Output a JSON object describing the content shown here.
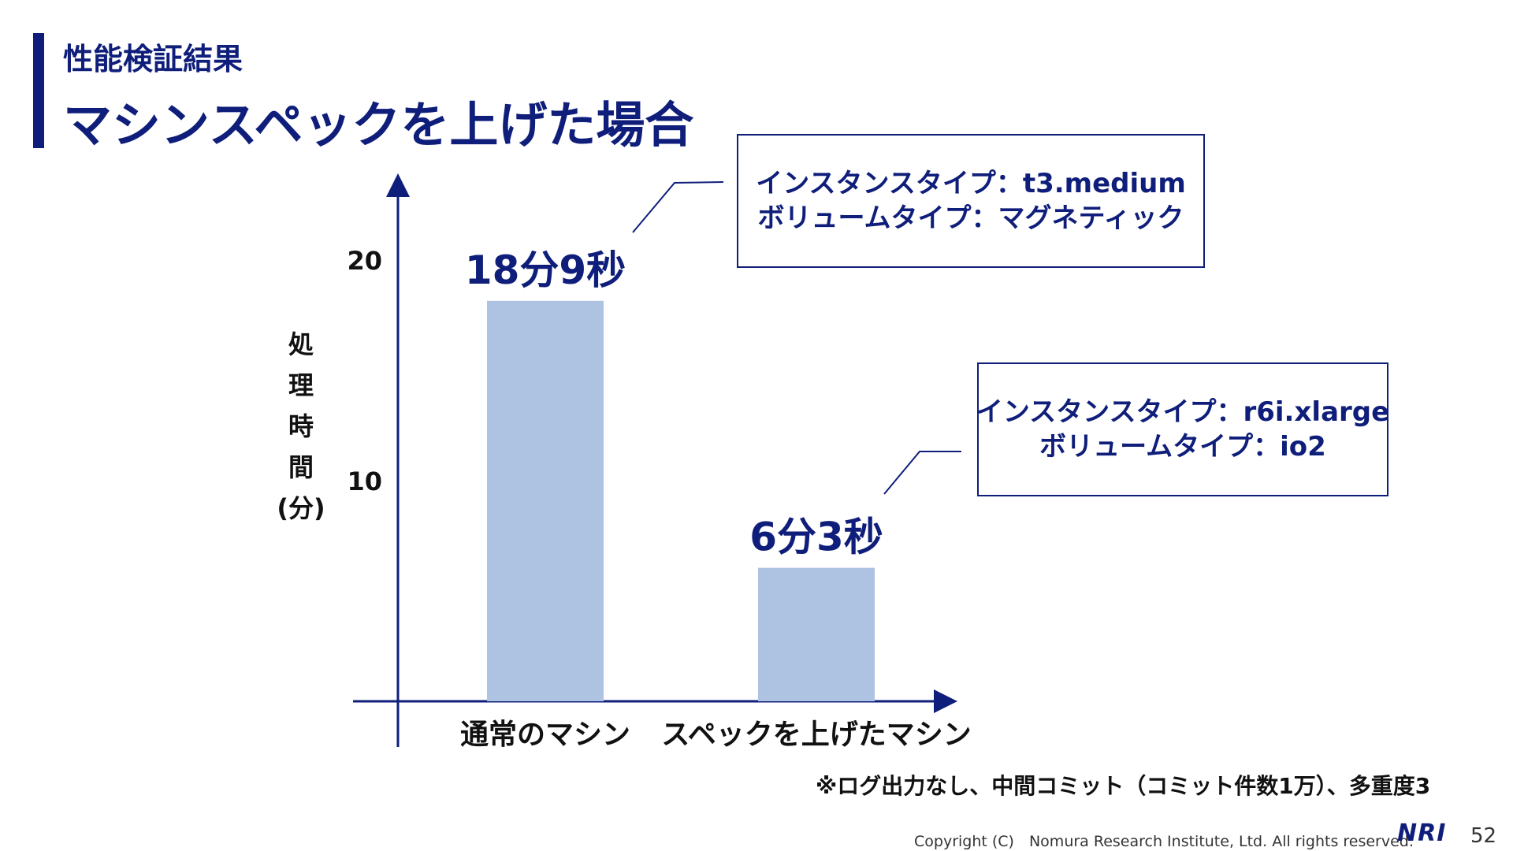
{
  "header": {
    "section": "性能検証結果",
    "title": "マシンスペックを上げた場合"
  },
  "colors": {
    "accent": "#0f1e7a",
    "bar": "#aec2e2",
    "axis": "#0f1e7a"
  },
  "chart_data": {
    "type": "bar",
    "categories": [
      "通常のマシン",
      "スペックを上げたマシン"
    ],
    "values": [
      18.15,
      6.05
    ],
    "data_labels": [
      "18分9秒",
      "6分3秒"
    ],
    "ylabel": [
      "処",
      "理",
      "時",
      "間",
      "(分)"
    ],
    "yticks": [
      10,
      20
    ],
    "ylim": [
      0,
      24
    ],
    "grid": false
  },
  "spec_boxes": [
    {
      "line1": "インスタンスタイプ：t3.medium",
      "line2": "ボリュームタイプ：マグネティック"
    },
    {
      "line1": "インスタンスタイプ：r6i.xlarge",
      "line2": "ボリュームタイプ：io2"
    }
  ],
  "footnote": "※ログ出力なし、中間コミット（コミット件数1万）、多重度3",
  "footer": {
    "copyright": "Copyright (C)　Nomura Research Institute, Ltd. All rights reserved.",
    "logo": "NRI",
    "page": "52"
  }
}
